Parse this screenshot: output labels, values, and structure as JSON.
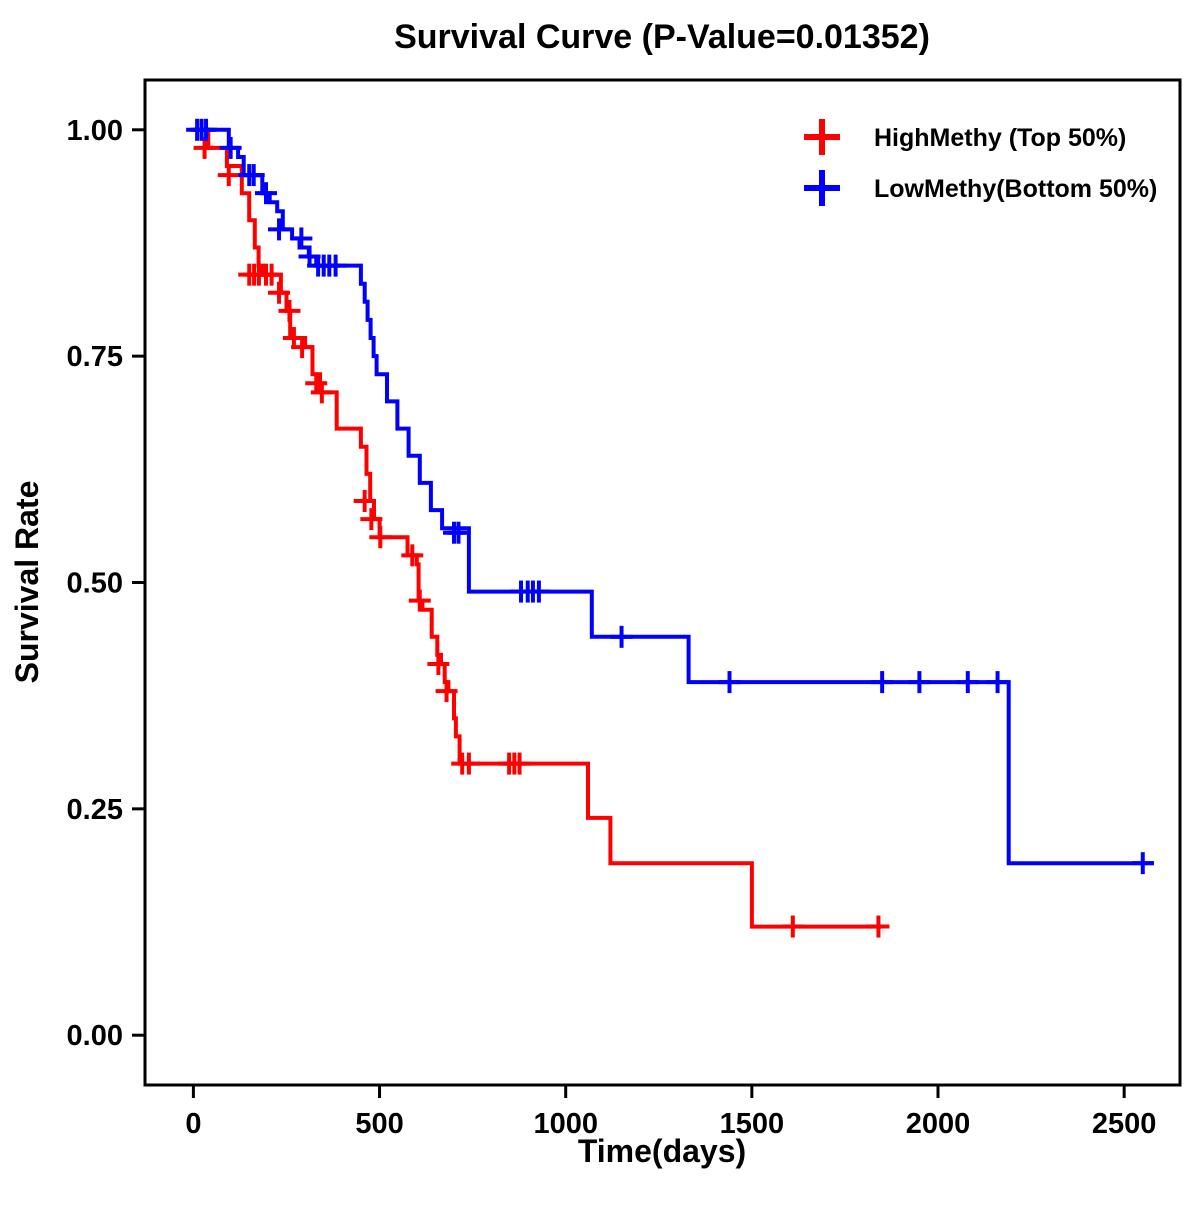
{
  "chart_data": {
    "type": "line",
    "subtype": "kaplan-meier-step",
    "title": "Survival Curve (P-Value=0.01352)",
    "xlabel": "Time(days)",
    "ylabel": "Survival Rate",
    "xlim": [
      -130,
      2650
    ],
    "ylim": [
      -0.055,
      1.055
    ],
    "xticks": [
      0,
      500,
      1000,
      1500,
      2000,
      2500
    ],
    "ytick_values": [
      0,
      0.25,
      0.5,
      0.75,
      1
    ],
    "ytick_labels": [
      "0.00",
      "0.25",
      "0.50",
      "0.75",
      "1.00"
    ],
    "grid": false,
    "legend_position": "top-right-inside",
    "frame_color": "#000000",
    "series": [
      {
        "name": "HighMethy (Top 50%)",
        "color": "#FF0000",
        "points": [
          [
            0,
            1.0
          ],
          [
            40,
            0.98
          ],
          [
            90,
            0.96
          ],
          [
            130,
            0.93
          ],
          [
            150,
            0.9
          ],
          [
            165,
            0.87
          ],
          [
            175,
            0.85
          ],
          [
            185,
            0.84
          ],
          [
            235,
            0.82
          ],
          [
            250,
            0.8
          ],
          [
            260,
            0.77
          ],
          [
            300,
            0.76
          ],
          [
            320,
            0.73
          ],
          [
            340,
            0.71
          ],
          [
            385,
            0.67
          ],
          [
            450,
            0.65
          ],
          [
            465,
            0.62
          ],
          [
            475,
            0.59
          ],
          [
            485,
            0.57
          ],
          [
            500,
            0.55
          ],
          [
            575,
            0.53
          ],
          [
            600,
            0.52
          ],
          [
            605,
            0.48
          ],
          [
            615,
            0.47
          ],
          [
            640,
            0.44
          ],
          [
            655,
            0.42
          ],
          [
            665,
            0.41
          ],
          [
            675,
            0.39
          ],
          [
            685,
            0.38
          ],
          [
            700,
            0.35
          ],
          [
            705,
            0.33
          ],
          [
            715,
            0.3
          ],
          [
            1060,
            0.24
          ],
          [
            1120,
            0.19
          ],
          [
            1500,
            0.12
          ],
          [
            1850,
            0.12
          ]
        ],
        "censors": [
          [
            30,
            0.98
          ],
          [
            95,
            0.95
          ],
          [
            150,
            0.84
          ],
          [
            163,
            0.84
          ],
          [
            176,
            0.84
          ],
          [
            195,
            0.84
          ],
          [
            210,
            0.84
          ],
          [
            230,
            0.82
          ],
          [
            258,
            0.8
          ],
          [
            270,
            0.77
          ],
          [
            292,
            0.76
          ],
          [
            330,
            0.72
          ],
          [
            345,
            0.71
          ],
          [
            460,
            0.59
          ],
          [
            478,
            0.57
          ],
          [
            502,
            0.55
          ],
          [
            588,
            0.53
          ],
          [
            608,
            0.48
          ],
          [
            658,
            0.41
          ],
          [
            680,
            0.38
          ],
          [
            722,
            0.3
          ],
          [
            740,
            0.3
          ],
          [
            848,
            0.3
          ],
          [
            862,
            0.3
          ],
          [
            876,
            0.3
          ],
          [
            1610,
            0.12
          ],
          [
            1840,
            0.12
          ]
        ]
      },
      {
        "name": "LowMethy(Bottom 50%)",
        "color": "#0000FF",
        "points": [
          [
            0,
            1.0
          ],
          [
            95,
            0.98
          ],
          [
            120,
            0.97
          ],
          [
            135,
            0.95
          ],
          [
            185,
            0.93
          ],
          [
            205,
            0.92
          ],
          [
            225,
            0.91
          ],
          [
            240,
            0.89
          ],
          [
            265,
            0.88
          ],
          [
            285,
            0.87
          ],
          [
            310,
            0.86
          ],
          [
            330,
            0.85
          ],
          [
            450,
            0.83
          ],
          [
            460,
            0.81
          ],
          [
            468,
            0.79
          ],
          [
            476,
            0.77
          ],
          [
            484,
            0.75
          ],
          [
            492,
            0.73
          ],
          [
            520,
            0.7
          ],
          [
            548,
            0.67
          ],
          [
            578,
            0.64
          ],
          [
            608,
            0.61
          ],
          [
            638,
            0.58
          ],
          [
            668,
            0.56
          ],
          [
            740,
            0.49
          ],
          [
            1070,
            0.44
          ],
          [
            1330,
            0.39
          ],
          [
            2190,
            0.19
          ],
          [
            2580,
            0.19
          ]
        ],
        "censors": [
          [
            10,
            1.0
          ],
          [
            22,
            1.0
          ],
          [
            34,
            1.0
          ],
          [
            100,
            0.98
          ],
          [
            150,
            0.95
          ],
          [
            162,
            0.95
          ],
          [
            195,
            0.93
          ],
          [
            230,
            0.89
          ],
          [
            290,
            0.88
          ],
          [
            312,
            0.86
          ],
          [
            335,
            0.85
          ],
          [
            350,
            0.85
          ],
          [
            365,
            0.85
          ],
          [
            382,
            0.85
          ],
          [
            700,
            0.555
          ],
          [
            712,
            0.555
          ],
          [
            880,
            0.49
          ],
          [
            898,
            0.49
          ],
          [
            912,
            0.49
          ],
          [
            928,
            0.49
          ],
          [
            1150,
            0.44
          ],
          [
            1440,
            0.39
          ],
          [
            1850,
            0.39
          ],
          [
            1950,
            0.39
          ],
          [
            2080,
            0.39
          ],
          [
            2160,
            0.39
          ],
          [
            2550,
            0.19
          ]
        ]
      }
    ]
  }
}
